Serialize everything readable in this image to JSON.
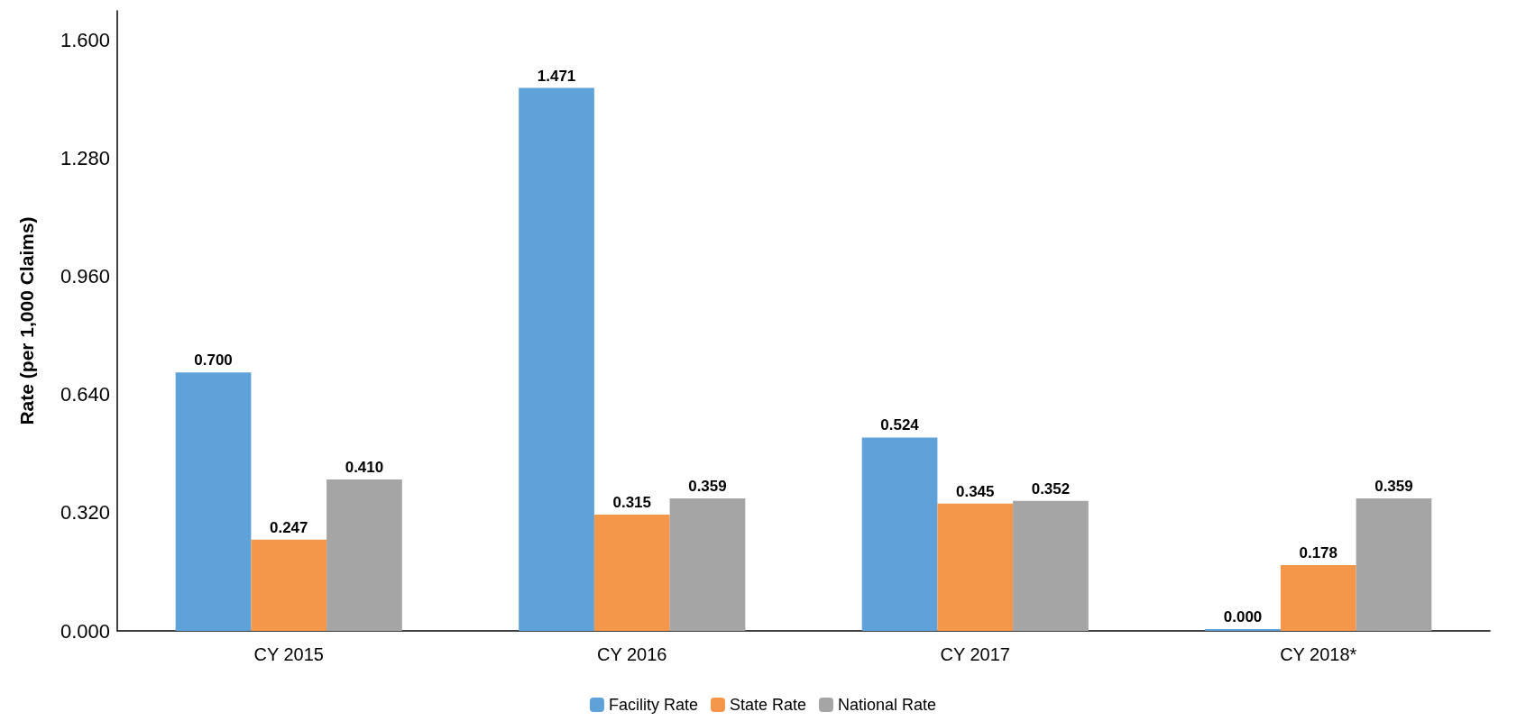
{
  "chart_data": {
    "type": "bar",
    "ylabel": "Rate (per 1,000 Claims)",
    "categories": [
      "CY 2015",
      "CY 2016",
      "CY 2017",
      "CY 2018*"
    ],
    "series": [
      {
        "name": "Facility Rate",
        "color": "#5fa2d9",
        "values": [
          0.7,
          1.471,
          0.524,
          0
        ],
        "value_labels": [
          "0.700",
          "1.471",
          "0.524",
          "0.000"
        ]
      },
      {
        "name": "State Rate",
        "color": "#f5974a",
        "values": [
          0.247,
          0.315,
          0.345,
          0.178
        ],
        "value_labels": [
          "0.247",
          "0.315",
          "0.345",
          "0.178"
        ]
      },
      {
        "name": "National Rate",
        "color": "#a5a5a5",
        "values": [
          0.41,
          0.359,
          0.352,
          0.359
        ],
        "value_labels": [
          "0.410",
          "0.359",
          "0.352",
          "0.359"
        ]
      }
    ],
    "ylim": [
      0,
      1.68
    ],
    "yticks": [
      {
        "value": 0,
        "label": "0.000"
      },
      {
        "value": 0.32,
        "label": "0.320"
      },
      {
        "value": 0.64,
        "label": "0.640"
      },
      {
        "value": 0.96,
        "label": "0.960"
      },
      {
        "value": 1.28,
        "label": "1.280"
      },
      {
        "value": 1.6,
        "label": "1.600"
      }
    ],
    "grid": false,
    "legend": "bottom"
  }
}
